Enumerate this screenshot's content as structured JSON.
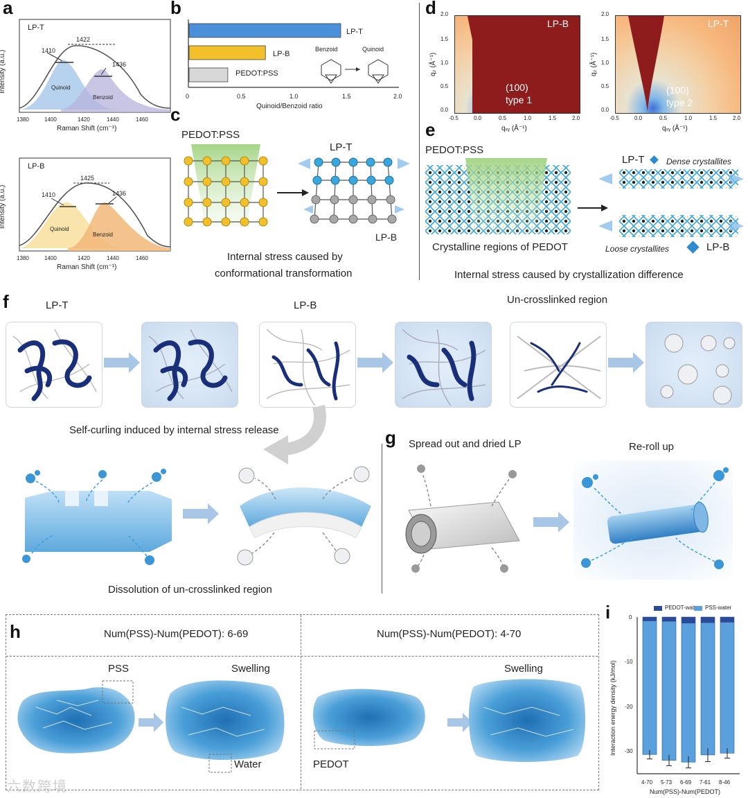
{
  "panels": {
    "a": "a",
    "b": "b",
    "c": "c",
    "d": "d",
    "e": "e",
    "f": "f",
    "g": "g",
    "h": "h",
    "i": "i"
  },
  "panel_a": {
    "top": {
      "sample": "LP-T",
      "peak_center": "1422",
      "peak_left": "1410",
      "peak_right": "1436",
      "comp1": "Quinoid",
      "comp2": "Benzoid"
    },
    "bottom": {
      "sample": "LP-B",
      "peak_center": "1425",
      "peak_left": "1410",
      "peak_right": "1436",
      "comp1": "Quinoid",
      "comp2": "Benzoid"
    },
    "ylabel": "Intensity (a.u.)",
    "xlabel": "Raman Shift (cm⁻¹)",
    "xticks": [
      "1380",
      "1400",
      "1420",
      "1440",
      "1460"
    ]
  },
  "chart_data": [
    {
      "id": "b",
      "type": "bar",
      "orientation": "horizontal",
      "categories": [
        "LP-T",
        "LP-B",
        "PEDOT:PSS"
      ],
      "values": [
        1.45,
        0.73,
        0.37
      ],
      "colors": [
        "#4a90d9",
        "#f2c02a",
        "#d8d8d8"
      ],
      "xlabel": "Quinoid/Benzoid ratio",
      "xlim": [
        0,
        2.0
      ],
      "xticks": [
        "0",
        "0.5",
        "1.0",
        "1.5",
        "2.0"
      ],
      "annotations": [
        "Benzoid",
        "Quinoid"
      ]
    },
    {
      "id": "i",
      "type": "bar",
      "stacked": true,
      "categories": [
        "4-70",
        "5-73",
        "6-69",
        "7-61",
        "8-46"
      ],
      "series": [
        {
          "name": "PEDOT-water",
          "values": [
            -0.9,
            -1.0,
            -1.4,
            -1.3,
            -1.2
          ],
          "color": "#2c4a9a"
        },
        {
          "name": "PSS-water",
          "values": [
            -29.8,
            -31.0,
            -31.0,
            -29.5,
            -29.2
          ],
          "color": "#5aa0dc"
        }
      ],
      "error": [
        1.0,
        1.2,
        1.3,
        1.5,
        1.1
      ],
      "ylabel": "Interaction energy density (kJ/mol)",
      "xlabel": "Num(PSS)-Num(PEDOT)",
      "ylim": [
        -35,
        0
      ],
      "yticks": [
        "0",
        "-10",
        "-20",
        "-30"
      ]
    }
  ],
  "panel_c": {
    "top": "PEDOT:PSS",
    "lpt": "LP-T",
    "lpb": "LP-B",
    "caption1": "Internal stress caused by",
    "caption2": "conformational transformation"
  },
  "panel_d": {
    "left": {
      "tag": "LP-B",
      "ann1": "(100)",
      "ann2": "type 1"
    },
    "right": {
      "tag": "LP-T",
      "ann1": "(100)",
      "ann2": "type 2"
    },
    "ylabel": "q₂ (Å⁻¹)",
    "xlabel": "qₓᵧ (Å⁻¹)",
    "xticks": [
      "-0.5",
      "0.0",
      "0.5",
      "1.0",
      "1.5",
      "2.0"
    ],
    "yticks": [
      "2.0",
      "1.5",
      "1.0",
      "0.5",
      "0.0"
    ]
  },
  "panel_e": {
    "top": "PEDOT:PSS",
    "region": "Crystalline regions of PEDOT",
    "lpt": "LP-T",
    "dense": "Dense crystallites",
    "loose": "Loose crystallites",
    "lpb": "LP-B",
    "caption": "Internal stress caused by crystallization difference"
  },
  "panel_f": {
    "lpt": "LP-T",
    "lpb": "LP-B",
    "uncross": "Un-crosslinked region",
    "self_curl": "Self-curling induced by internal stress release",
    "dissolution": "Dissolution of un-crosslinked region"
  },
  "panel_g": {
    "spread": "Spread out and dried LP",
    "reroll": "Re-roll up"
  },
  "panel_h": {
    "left_title": "Num(PSS)-Num(PEDOT): 6-69",
    "right_title": "Num(PSS)-Num(PEDOT): 4-70",
    "pss": "PSS",
    "swelling1": "Swelling",
    "water": "Water",
    "pedot": "PEDOT",
    "swelling2": "Swelling"
  },
  "watermark": "六数跨境"
}
